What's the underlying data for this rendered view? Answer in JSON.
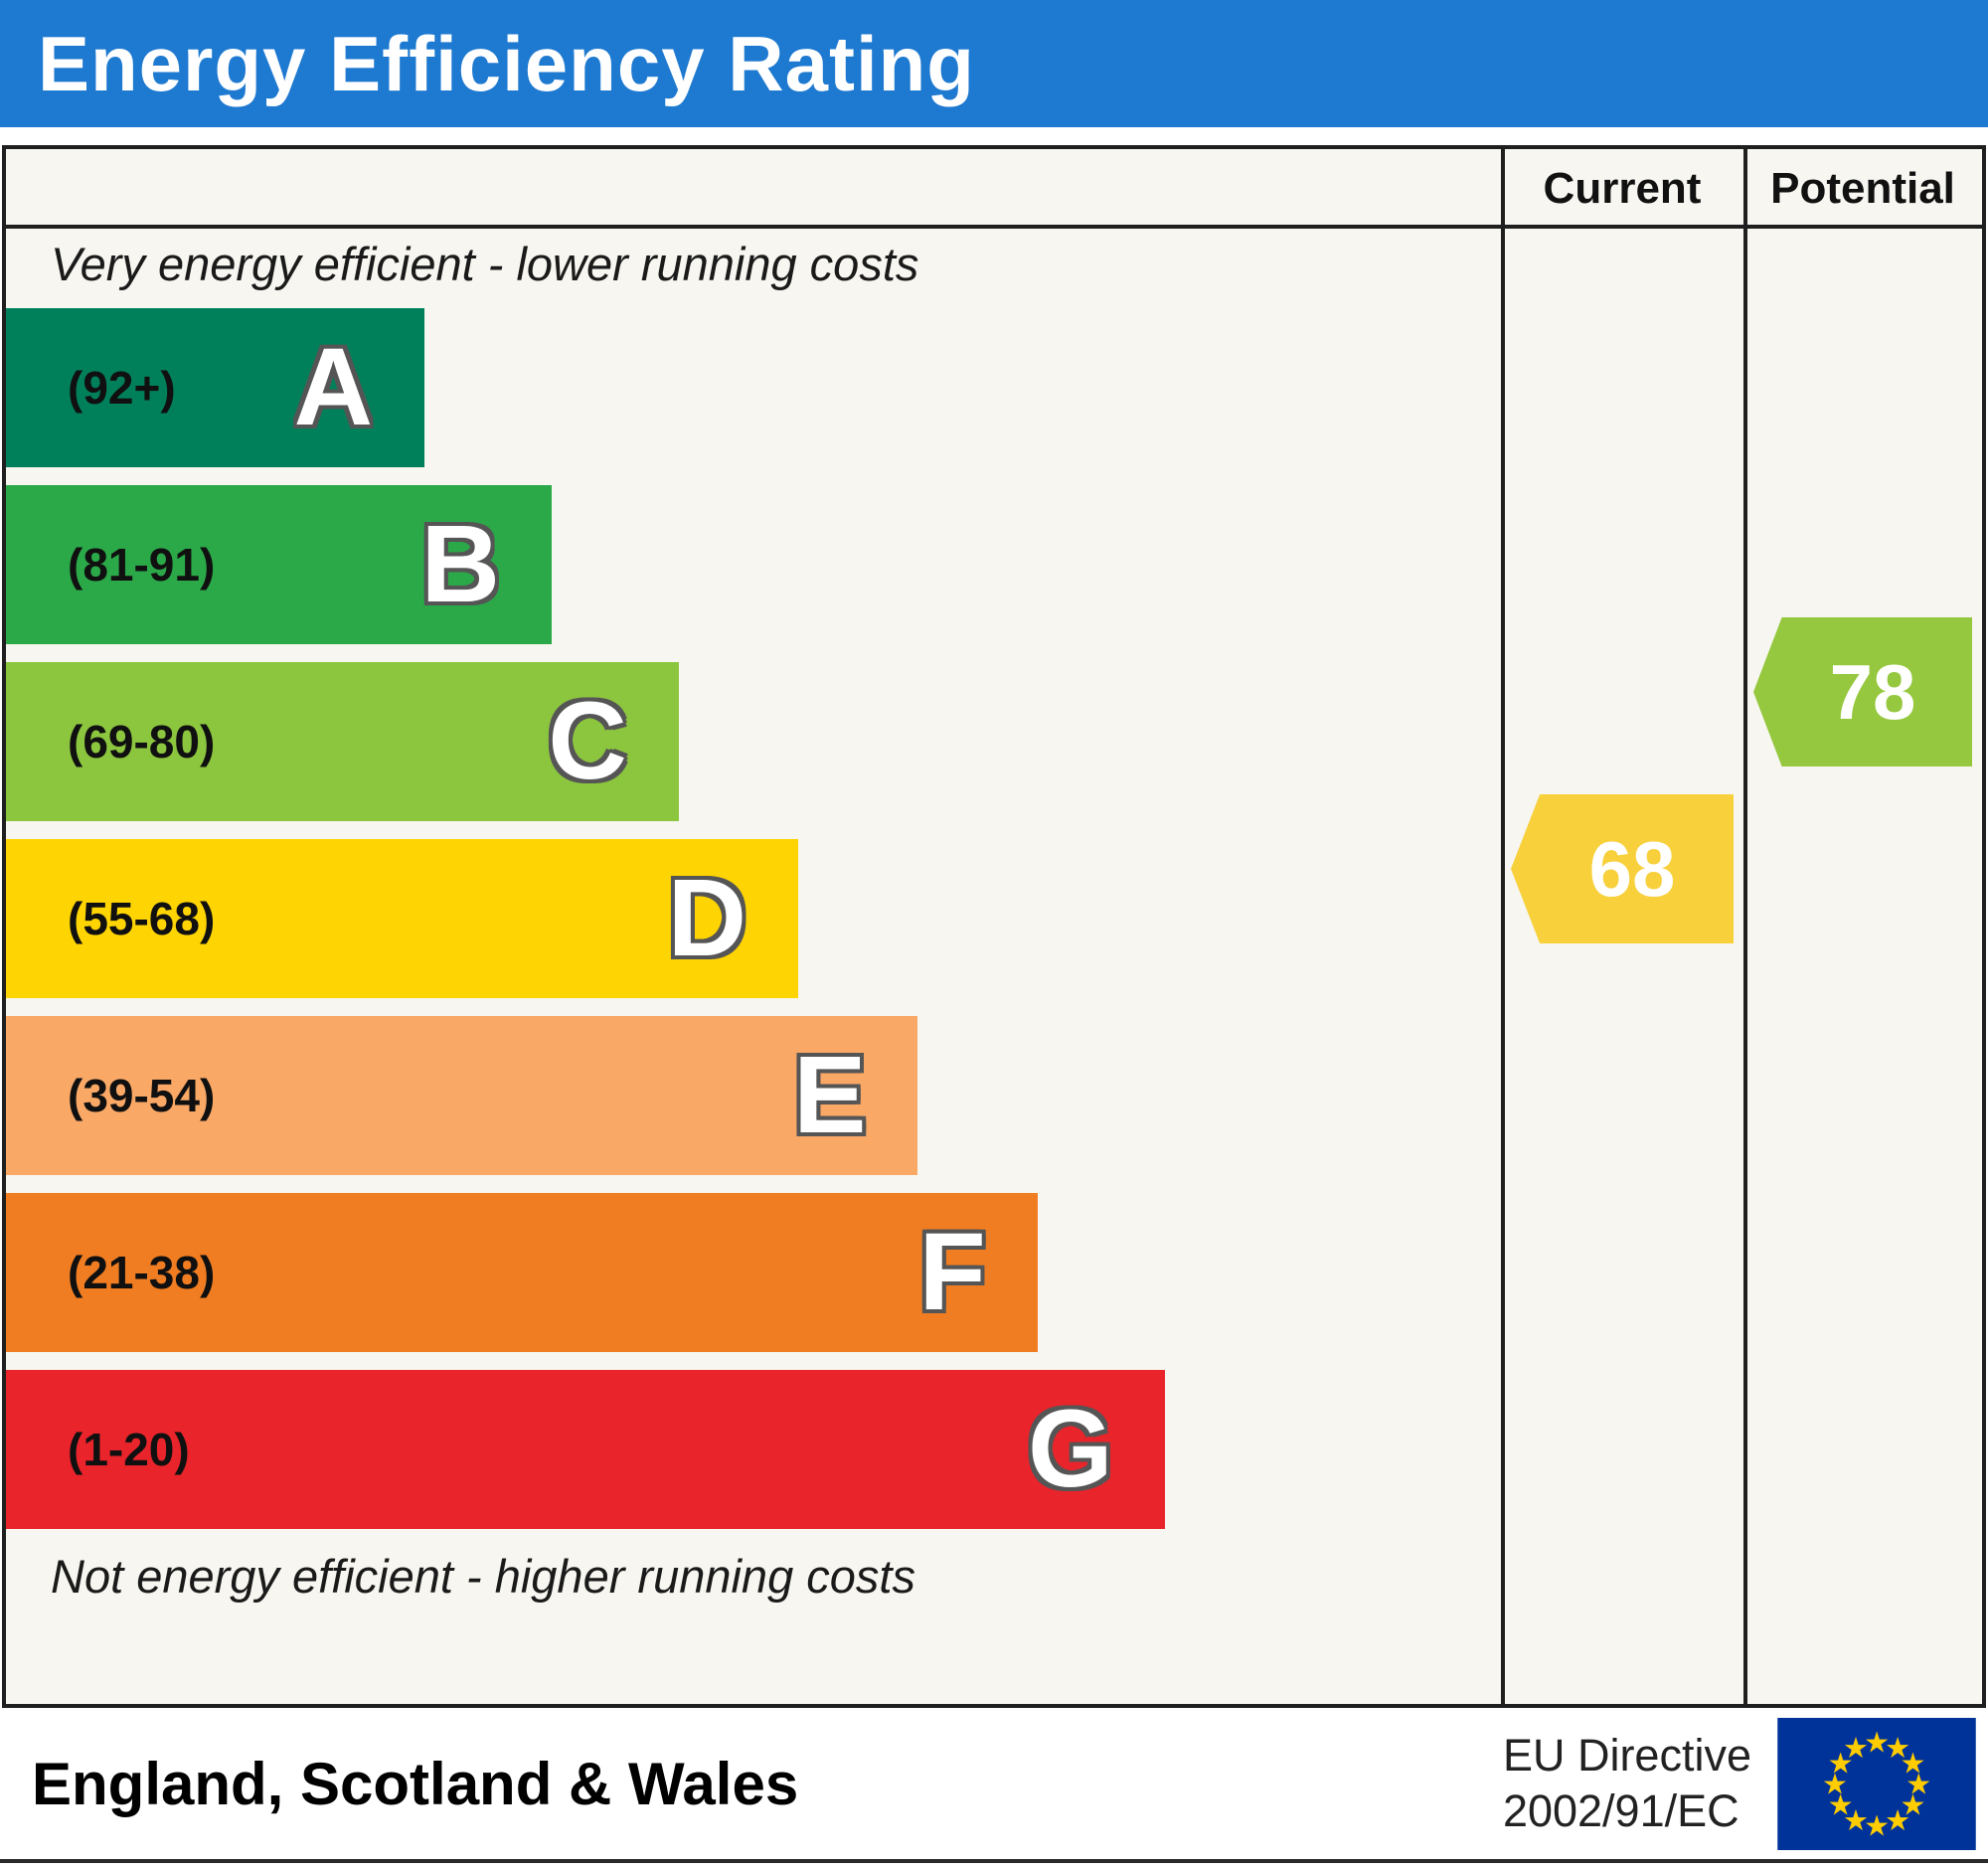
{
  "title": "Energy Efficiency Rating",
  "header": {
    "current_label": "Current",
    "potential_label": "Potential"
  },
  "captions": {
    "top": "Very energy efficient - lower running costs",
    "bottom": "Not energy efficient - higher running costs"
  },
  "footer": {
    "region_label": "England, Scotland & Wales",
    "directive_line1": "EU Directive",
    "directive_line2": "2002/91/EC"
  },
  "colors": {
    "header_bg": "#1e79d0",
    "border": "#1f1f1f",
    "panel_bg": "#f7f6f0",
    "current_arrow": "#f7d03c",
    "potential_arrow": "#95c83e",
    "eu_flag_bg": "#003399",
    "eu_star": "#ffcc00"
  },
  "chart_data": {
    "type": "bar",
    "title": "Energy Efficiency Rating",
    "region": "England, Scotland & Wales",
    "directive": "EU Directive 2002/91/EC",
    "scale_note_top": "Very energy efficient - lower running costs",
    "scale_note_bottom": "Not energy efficient - higher running costs",
    "column_headers": [
      "Current",
      "Potential"
    ],
    "bands": [
      {
        "letter": "A",
        "range_label": "(92+)",
        "min": 92,
        "max": 100,
        "color": "#00805a",
        "width_pct": 28
      },
      {
        "letter": "B",
        "range_label": "(81-91)",
        "min": 81,
        "max": 91,
        "color": "#2ba949",
        "width_pct": 36.5
      },
      {
        "letter": "C",
        "range_label": "(69-80)",
        "min": 69,
        "max": 80,
        "color": "#8cc63f",
        "width_pct": 45
      },
      {
        "letter": "D",
        "range_label": "(55-68)",
        "min": 55,
        "max": 68,
        "color": "#fed402",
        "width_pct": 53
      },
      {
        "letter": "E",
        "range_label": "(39-54)",
        "min": 39,
        "max": 54,
        "color": "#f9a866",
        "width_pct": 61
      },
      {
        "letter": "F",
        "range_label": "(21-38)",
        "min": 21,
        "max": 38,
        "color": "#f07d22",
        "width_pct": 69
      },
      {
        "letter": "G",
        "range_label": "(1-20)",
        "min": 1,
        "max": 20,
        "color": "#e9242b",
        "width_pct": 77.5
      }
    ],
    "current": {
      "value": 68,
      "band": "D",
      "band_index": 3
    },
    "potential": {
      "value": 78,
      "band": "C",
      "band_index": 2
    }
  }
}
